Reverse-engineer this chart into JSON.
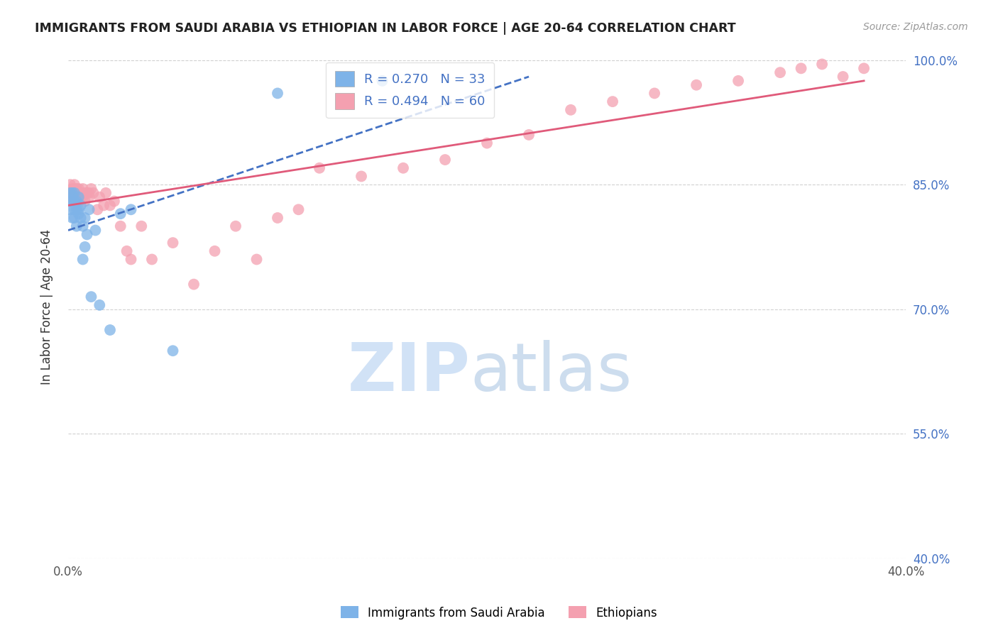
{
  "title": "IMMIGRANTS FROM SAUDI ARABIA VS ETHIOPIAN IN LABOR FORCE | AGE 20-64 CORRELATION CHART",
  "source": "Source: ZipAtlas.com",
  "ylabel": "In Labor Force | Age 20-64",
  "xlabel": "",
  "xlim": [
    0.0,
    0.4
  ],
  "ylim": [
    0.4,
    1.005
  ],
  "xticks": [
    0.0,
    0.05,
    0.1,
    0.15,
    0.2,
    0.25,
    0.3,
    0.35,
    0.4
  ],
  "xticklabels": [
    "0.0%",
    "",
    "",
    "",
    "",
    "",
    "",
    "",
    "40.0%"
  ],
  "yticks": [
    0.4,
    0.55,
    0.7,
    0.85,
    1.0
  ],
  "yticklabels": [
    "40.0%",
    "55.0%",
    "70.0%",
    "85.0%",
    "100.0%"
  ],
  "saudi_R": 0.27,
  "saudi_N": 33,
  "ethiopian_R": 0.494,
  "ethiopian_N": 60,
  "saudi_color": "#7eb3e8",
  "ethiopian_color": "#f4a0b0",
  "saudi_line_color": "#4472c4",
  "ethiopian_line_color": "#e05a7a",
  "watermark_zip_color": "#ccdff5",
  "watermark_atlas_color": "#b8cfe8",
  "background_color": "#ffffff",
  "saudi_x": [
    0.001,
    0.001,
    0.001,
    0.002,
    0.002,
    0.002,
    0.003,
    0.003,
    0.003,
    0.003,
    0.004,
    0.004,
    0.004,
    0.005,
    0.005,
    0.005,
    0.006,
    0.006,
    0.007,
    0.007,
    0.008,
    0.008,
    0.009,
    0.01,
    0.011,
    0.013,
    0.015,
    0.02,
    0.025,
    0.03,
    0.05,
    0.1,
    0.15
  ],
  "saudi_y": [
    0.82,
    0.83,
    0.84,
    0.83,
    0.81,
    0.84,
    0.82,
    0.83,
    0.81,
    0.84,
    0.82,
    0.83,
    0.8,
    0.82,
    0.835,
    0.815,
    0.825,
    0.81,
    0.76,
    0.8,
    0.775,
    0.81,
    0.79,
    0.82,
    0.715,
    0.795,
    0.705,
    0.675,
    0.815,
    0.82,
    0.65,
    0.96,
    0.975
  ],
  "ethiopian_x": [
    0.001,
    0.001,
    0.002,
    0.002,
    0.002,
    0.003,
    0.003,
    0.003,
    0.003,
    0.004,
    0.004,
    0.004,
    0.005,
    0.005,
    0.005,
    0.006,
    0.006,
    0.007,
    0.007,
    0.008,
    0.008,
    0.009,
    0.01,
    0.01,
    0.011,
    0.012,
    0.014,
    0.015,
    0.017,
    0.018,
    0.02,
    0.022,
    0.025,
    0.028,
    0.03,
    0.035,
    0.04,
    0.05,
    0.06,
    0.07,
    0.08,
    0.09,
    0.1,
    0.11,
    0.12,
    0.14,
    0.16,
    0.18,
    0.2,
    0.22,
    0.24,
    0.26,
    0.28,
    0.3,
    0.32,
    0.34,
    0.35,
    0.36,
    0.37,
    0.38
  ],
  "ethiopian_y": [
    0.84,
    0.85,
    0.835,
    0.845,
    0.83,
    0.84,
    0.845,
    0.835,
    0.85,
    0.84,
    0.835,
    0.845,
    0.84,
    0.83,
    0.845,
    0.84,
    0.835,
    0.845,
    0.835,
    0.84,
    0.83,
    0.84,
    0.835,
    0.84,
    0.845,
    0.84,
    0.82,
    0.835,
    0.825,
    0.84,
    0.825,
    0.83,
    0.8,
    0.77,
    0.76,
    0.8,
    0.76,
    0.78,
    0.73,
    0.77,
    0.8,
    0.76,
    0.81,
    0.82,
    0.87,
    0.86,
    0.87,
    0.88,
    0.9,
    0.91,
    0.94,
    0.95,
    0.96,
    0.97,
    0.975,
    0.985,
    0.99,
    0.995,
    0.98,
    0.99
  ],
  "saudi_line_x": [
    0.0,
    0.22
  ],
  "saudi_line_y": [
    0.795,
    0.98
  ],
  "ethiopian_line_x": [
    0.0,
    0.38
  ],
  "ethiopian_line_y": [
    0.825,
    0.975
  ]
}
